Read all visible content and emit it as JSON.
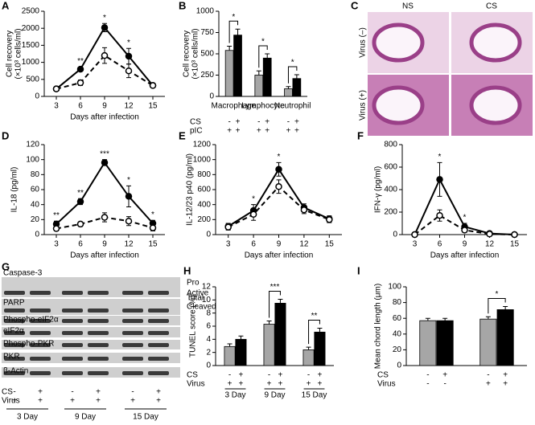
{
  "chart_data": [
    {
      "type": "line",
      "title": "A",
      "ylabel": [
        "Cell recovery",
        "(×10³ cells/ml)"
      ],
      "xlabel": "Days after infection",
      "x": [
        3,
        6,
        9,
        12,
        15
      ],
      "xlim": [
        1.5,
        16.5
      ],
      "xticks": [
        3,
        6,
        9,
        12,
        15
      ],
      "ylim": [
        0,
        2500
      ],
      "yticks": [
        0,
        500,
        1000,
        1500,
        2000,
        2500
      ],
      "series": [
        {
          "marker": "filled",
          "color": "#000000",
          "values": [
            220,
            800,
            2020,
            1180,
            320
          ],
          "errors": [
            60,
            60,
            120,
            230,
            60
          ]
        },
        {
          "marker": "open",
          "color": "#000000",
          "values": [
            220,
            400,
            1200,
            750,
            320
          ],
          "errors": [
            60,
            80,
            230,
            200,
            60
          ]
        }
      ],
      "annotations": [
        {
          "x": 6,
          "text": "**"
        },
        {
          "x": 9,
          "text": "*"
        },
        {
          "x": 12,
          "text": "*"
        }
      ]
    },
    {
      "type": "bar",
      "title": "B",
      "ylabel": [
        "Cell recovery",
        "(×10³ cells/ml)"
      ],
      "categories": [
        "Macrophage",
        "Lymphocyte",
        "Neutrophil"
      ],
      "ylim": [
        0,
        1000
      ],
      "yticks": [
        0,
        250,
        500,
        750,
        1000
      ],
      "series": [
        {
          "color": "#a6a6a6",
          "values": [
            540,
            250,
            90
          ],
          "errors": [
            50,
            50,
            25
          ]
        },
        {
          "color": "#000000",
          "values": [
            720,
            450,
            210
          ],
          "errors": [
            70,
            50,
            45
          ]
        }
      ],
      "conditions": [
        {
          "name": "CS",
          "values": [
            "-",
            "+",
            "-",
            "+",
            "-",
            "+"
          ]
        },
        {
          "name": "pIC",
          "values": [
            "+",
            "+",
            "+",
            "+",
            "+",
            "+"
          ]
        }
      ],
      "significance": [
        "*",
        "*",
        "*"
      ]
    },
    {
      "type": "line",
      "title": "D",
      "ylabel": "IL-18 (pg/ml)",
      "xlabel": "Days after infection",
      "x": [
        3,
        6,
        9,
        12,
        15
      ],
      "xlim": [
        1.5,
        16.5
      ],
      "xticks": [
        3,
        6,
        9,
        12,
        15
      ],
      "ylim": [
        0,
        120
      ],
      "yticks": [
        0,
        20,
        40,
        60,
        80,
        100,
        120
      ],
      "series": [
        {
          "marker": "filled",
          "color": "#000000",
          "values": [
            14,
            44,
            96,
            51,
            15
          ],
          "errors": [
            4,
            4,
            4,
            14,
            4
          ]
        },
        {
          "marker": "open",
          "color": "#000000",
          "values": [
            8,
            14,
            23,
            18,
            9
          ],
          "errors": [
            3,
            3,
            6,
            6,
            4
          ]
        }
      ],
      "annotations": [
        {
          "x": 3,
          "text": "**"
        },
        {
          "x": 6,
          "text": "**"
        },
        {
          "x": 9,
          "text": "***"
        },
        {
          "x": 12,
          "text": "*"
        },
        {
          "x": 15,
          "text": "*"
        }
      ]
    },
    {
      "type": "line",
      "title": "E",
      "ylabel": "IL-12/23 p40 (pg/ml)",
      "xlabel": "Days after infection",
      "x": [
        3,
        6,
        9,
        12,
        15
      ],
      "xlim": [
        1.5,
        16.5
      ],
      "xticks": [
        3,
        6,
        9,
        12,
        15
      ],
      "ylim": [
        0,
        1200
      ],
      "yticks": [
        0,
        200,
        400,
        600,
        800,
        1000,
        1200
      ],
      "series": [
        {
          "marker": "filled",
          "color": "#000000",
          "values": [
            110,
            320,
            870,
            360,
            210
          ],
          "errors": [
            40,
            80,
            90,
            50,
            40
          ]
        },
        {
          "marker": "open",
          "color": "#000000",
          "values": [
            100,
            270,
            640,
            330,
            200
          ],
          "errors": [
            40,
            80,
            90,
            50,
            40
          ]
        }
      ],
      "annotations": [
        {
          "x": 6,
          "text": "*"
        },
        {
          "x": 9,
          "text": "*"
        }
      ]
    },
    {
      "type": "line",
      "title": "F",
      "ylabel": "IFN-γ (pg/ml)",
      "xlabel": "Days after infection",
      "x": [
        3,
        6,
        9,
        12,
        15
      ],
      "xlim": [
        1.5,
        16.5
      ],
      "xticks": [
        3,
        6,
        9,
        12,
        15
      ],
      "ylim": [
        0,
        800
      ],
      "yticks": [
        0,
        200,
        400,
        600,
        800
      ],
      "series": [
        {
          "marker": "filled",
          "color": "#000000",
          "values": [
            0,
            490,
            70,
            10,
            0
          ],
          "errors": [
            0,
            150,
            30,
            5,
            0
          ]
        },
        {
          "marker": "open",
          "color": "#000000",
          "values": [
            0,
            170,
            40,
            5,
            0
          ],
          "errors": [
            0,
            50,
            20,
            5,
            0
          ]
        }
      ],
      "annotations": [
        {
          "x": 6,
          "text": "*"
        },
        {
          "x": 9,
          "text": "*"
        }
      ]
    },
    {
      "type": "bar",
      "title": "H",
      "ylabel": "TUNEL score (%)",
      "categories": [
        "3 Day",
        "9 Day",
        "15 Day"
      ],
      "ylim": [
        0,
        12
      ],
      "yticks": [
        0,
        2,
        4,
        6,
        8,
        10,
        12
      ],
      "series": [
        {
          "color": "#a6a6a6",
          "values": [
            2.9,
            6.3,
            2.4
          ],
          "errors": [
            0.4,
            0.5,
            0.4
          ]
        },
        {
          "color": "#000000",
          "values": [
            4.0,
            9.5,
            5.1
          ],
          "errors": [
            0.5,
            0.6,
            0.6
          ]
        }
      ],
      "conditions": [
        {
          "name": "CS",
          "values": [
            "-",
            "+",
            "-",
            "+",
            "-",
            "+"
          ]
        },
        {
          "name": "Virus",
          "values": [
            "+",
            "+",
            "+",
            "+",
            "+",
            "+"
          ]
        }
      ],
      "significance": [
        null,
        "***",
        "**"
      ]
    },
    {
      "type": "bar",
      "title": "I",
      "ylabel": "Mean chord length (μm)",
      "categories": [
        null,
        null
      ],
      "ylim": [
        0,
        100
      ],
      "yticks": [
        0,
        20,
        40,
        60,
        80,
        100
      ],
      "series": [
        {
          "color": "#a6a6a6",
          "values": [
            57,
            59
          ],
          "errors": [
            3,
            3
          ]
        },
        {
          "color": "#000000",
          "values": [
            57,
            71
          ],
          "errors": [
            3,
            4
          ]
        }
      ],
      "conditions": [
        {
          "name": "CS",
          "values": [
            "-",
            "+",
            "-",
            "+"
          ]
        },
        {
          "name": "Virus",
          "values": [
            "-",
            "-",
            "+",
            "+"
          ]
        }
      ],
      "significance": [
        null,
        "*"
      ]
    }
  ],
  "panel_c": {
    "title": "C",
    "columns": [
      "NS",
      "CS"
    ],
    "rows": [
      "Virus (–)",
      "Virus (+)"
    ]
  },
  "panel_g": {
    "title": "G",
    "blots": [
      "Caspase-3",
      "PARP",
      "Phospho-eIF2α",
      "eIF2α",
      "Phospho-PKR",
      "PKR",
      "β-Actin"
    ],
    "side_labels": [
      "Pro",
      "Active",
      "Total",
      "Cleaved"
    ],
    "conditions": [
      {
        "name": "CS",
        "values": [
          "-",
          "+",
          "-",
          "+",
          "-",
          "+"
        ]
      },
      {
        "name": "Virus",
        "values": [
          "+",
          "+",
          "+",
          "+",
          "+",
          "+"
        ]
      }
    ],
    "groups": [
      "3 Day",
      "9 Day",
      "15 Day"
    ]
  }
}
